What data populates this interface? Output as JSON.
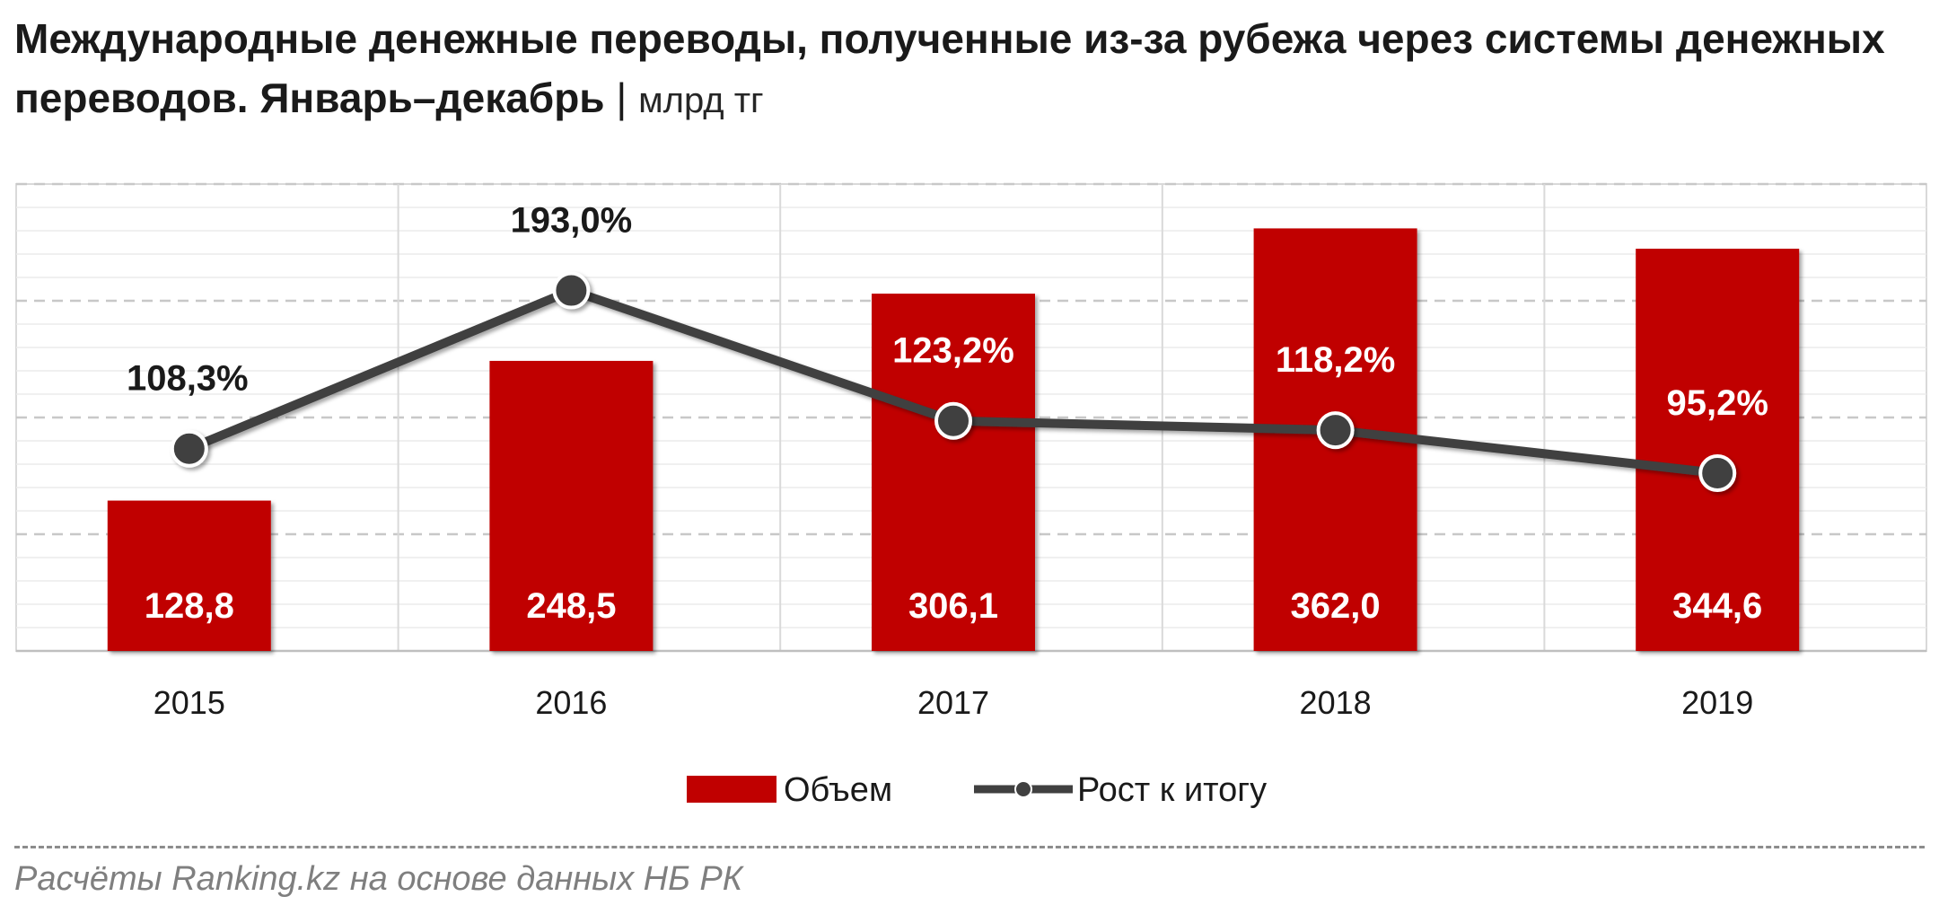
{
  "title": {
    "main": "Международные денежные переводы, полученные из-за рубежа через системы денежных переводов. Январь–декабрь",
    "separator": "|",
    "unit": "млрд тг"
  },
  "source": "Расчёты Ranking.kz на основе данных НБ РК",
  "chart_data": {
    "type": "bar",
    "categories": [
      "2015",
      "2016",
      "2017",
      "2018",
      "2019"
    ],
    "series": [
      {
        "name": "Объем",
        "type": "bar",
        "values": [
          128.8,
          248.5,
          306.1,
          362.0,
          344.6
        ],
        "labels": [
          "128,8",
          "248,5",
          "306,1",
          "362,0",
          "344,6"
        ],
        "color": "#c00000"
      },
      {
        "name": "Рост к итогу",
        "type": "line",
        "values": [
          108.3,
          193.0,
          123.2,
          118.2,
          95.2
        ],
        "labels": [
          "108,3%",
          "193,0%",
          "123,2%",
          "118,2%",
          "95,2%"
        ],
        "color": "#404040"
      }
    ],
    "bar_ylim": [
      0,
      400
    ],
    "line_ylim": [
      0,
      250
    ],
    "grid": true,
    "legend_position": "bottom"
  },
  "colors": {
    "bar": "#c00000",
    "line": "#404040",
    "grid": "#d9d9d9"
  }
}
